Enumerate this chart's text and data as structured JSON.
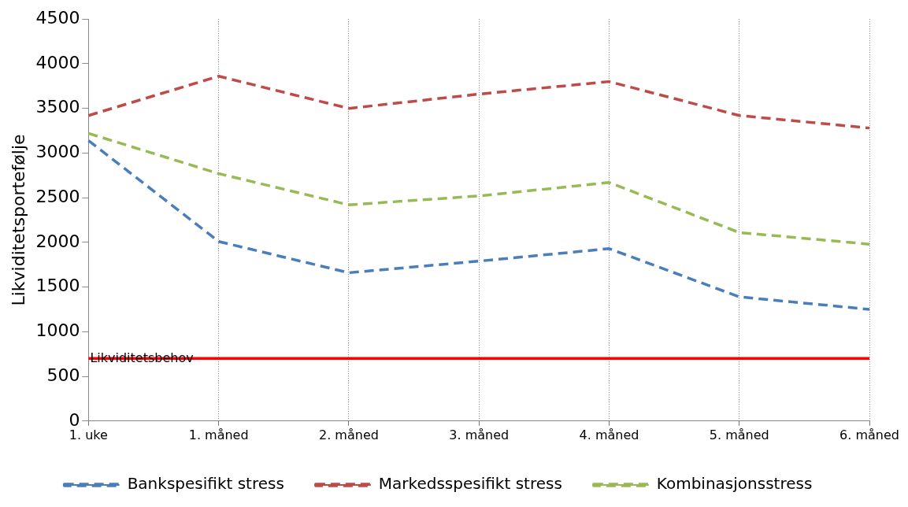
{
  "chart_data": {
    "type": "line",
    "ylabel": "Likviditetsportefølje",
    "categories": [
      "1. uke",
      "1. måned",
      "2. måned",
      "3. måned",
      "4. måned",
      "5. måned",
      "6. måned"
    ],
    "series": [
      {
        "name": "Bankspesifikt stress",
        "color": "#4a7ebb",
        "values": [
          3140,
          2010,
          1660,
          1790,
          1930,
          1390,
          1250
        ]
      },
      {
        "name": "Markedsspesifikt stress",
        "color": "#be4b48",
        "values": [
          3420,
          3860,
          3500,
          3660,
          3800,
          3420,
          3280
        ]
      },
      {
        "name": "Kombinasjonsstress",
        "color": "#98b954",
        "values": [
          3220,
          2770,
          2420,
          2520,
          2670,
          2110,
          1980
        ]
      }
    ],
    "ylim": [
      0,
      4500
    ],
    "yticks": [
      0,
      500,
      1000,
      1500,
      2000,
      2500,
      3000,
      3500,
      4000,
      4500
    ],
    "ref_lines": [
      {
        "axis": "y",
        "value": 700,
        "label": "Likviditetsbehov",
        "color": "#ff0000",
        "line_style": "solid"
      }
    ],
    "grid": "x",
    "legend": "bottom",
    "line_style": "dashed",
    "marker": "none"
  }
}
